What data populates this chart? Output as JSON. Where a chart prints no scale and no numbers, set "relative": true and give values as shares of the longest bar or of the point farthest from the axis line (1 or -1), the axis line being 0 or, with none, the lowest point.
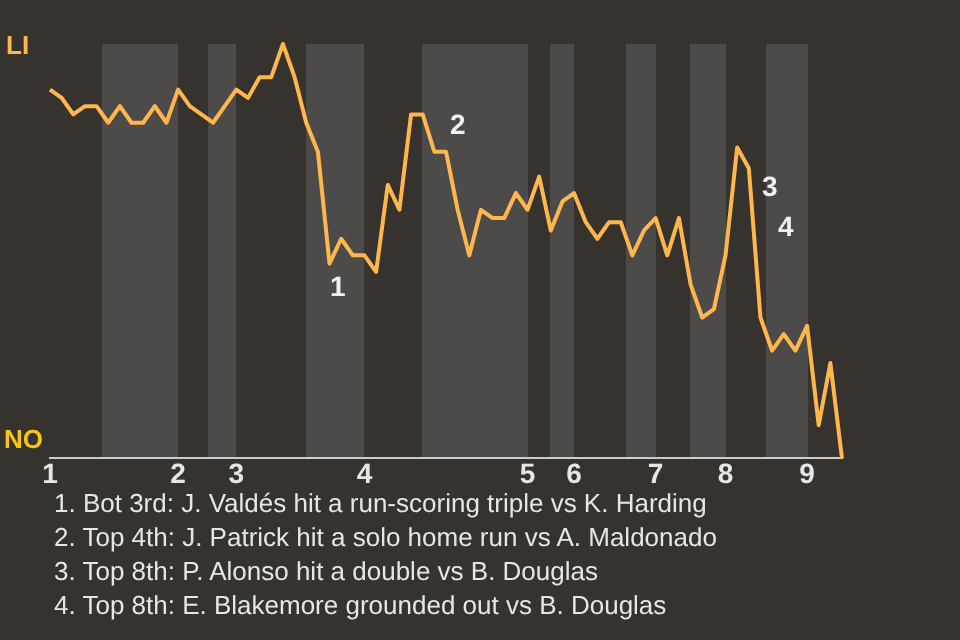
{
  "chart_data": {
    "type": "line",
    "categories": [
      "1",
      null,
      null,
      null,
      null,
      null,
      null,
      null,
      null,
      null,
      null,
      "2",
      null,
      null,
      null,
      null,
      "3",
      null,
      null,
      null,
      null,
      null,
      null,
      null,
      null,
      null,
      null,
      "4",
      null,
      null,
      null,
      null,
      null,
      null,
      null,
      null,
      null,
      null,
      null,
      null,
      null,
      "5",
      null,
      null,
      null,
      "6",
      null,
      null,
      null,
      null,
      null,
      null,
      "7",
      null,
      null,
      null,
      null,
      null,
      "8",
      null,
      null,
      null,
      null,
      null,
      null,
      "9",
      null,
      null,
      null
    ],
    "relative": true,
    "series": [
      {
        "color": "#ffb74d",
        "values": [
          0.89,
          0.87,
          0.83,
          0.85,
          0.85,
          0.81,
          0.85,
          0.81,
          0.81,
          0.85,
          0.81,
          0.89,
          0.85,
          0.83,
          0.81,
          0.85,
          0.89,
          0.87,
          0.92,
          0.92,
          1,
          0.92,
          0.81,
          0.74,
          0.47,
          0.53,
          0.49,
          0.49,
          0.45,
          0.66,
          0.6,
          0.83,
          0.83,
          0.74,
          0.74,
          0.6,
          0.49,
          0.6,
          0.58,
          0.58,
          0.64,
          0.6,
          0.68,
          0.55,
          0.62,
          0.64,
          0.57,
          0.53,
          0.57,
          0.57,
          0.49,
          0.55,
          0.58,
          0.49,
          0.58,
          0.42,
          0.34,
          0.36,
          0.49,
          0.75,
          0.7,
          0.34,
          0.26,
          0.3,
          0.26,
          0.32,
          0.08,
          0.23,
          0
        ]
      }
    ],
    "marker": "none",
    "line_style": "solid",
    "annotations": [
      "LI",
      "NO",
      "1",
      "2",
      "3",
      "4",
      "1. Bot 3rd: J. Valdés hit a run-scoring triple vs K. Harding",
      "2. Top 4th: J. Patrick hit a solo home run vs A. Maldonado",
      "3. Top 8th: P. Alonso hit a double vs B. Douglas",
      "4. Top 8th: E. Blakemore grounded out vs B. Douglas"
    ]
  }
}
